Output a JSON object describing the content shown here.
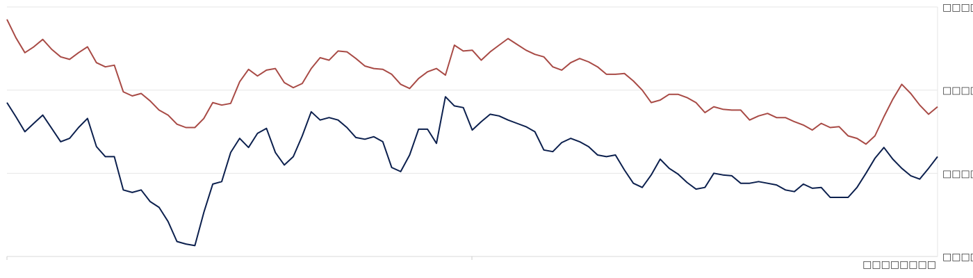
{
  "chart_data": {
    "type": "line",
    "ylabel": "",
    "xlabel": "",
    "grid": true,
    "ylim": [
      0,
      3
    ],
    "y_ticks": [
      {
        "value": 3,
        "label": "□□□□□□"
      },
      {
        "value": 2,
        "label": "□□□□□□"
      },
      {
        "value": 1,
        "label": "□□□□□□"
      },
      {
        "value": 0,
        "label": "□□□□□□"
      }
    ],
    "x_label_text": "□□□□□□□□",
    "x": [
      0,
      1,
      2,
      3,
      4,
      5,
      6,
      7,
      8,
      9,
      10,
      11,
      12,
      13,
      14,
      15,
      16,
      17,
      18,
      19,
      20,
      21,
      22,
      23,
      24,
      25,
      26,
      27,
      28,
      29,
      30,
      31,
      32,
      33,
      34,
      35,
      36,
      37,
      38,
      39,
      40,
      41,
      42,
      43,
      44,
      45,
      46,
      47,
      48,
      49,
      50,
      51,
      52,
      53,
      54,
      55,
      56,
      57,
      58,
      59,
      60,
      61,
      62,
      63,
      64,
      65,
      66,
      67,
      68,
      69,
      70,
      71,
      72,
      73,
      74,
      75,
      76,
      77,
      78,
      79,
      80,
      81,
      82,
      83,
      84,
      85,
      86,
      87,
      88,
      89,
      90,
      91,
      92,
      93,
      94,
      95,
      96,
      97,
      98,
      99,
      100,
      101,
      102,
      103,
      104
    ],
    "series": [
      {
        "color": "#a84a45",
        "values": [
          2.85,
          2.63,
          2.45,
          2.52,
          2.61,
          2.49,
          2.4,
          2.37,
          2.45,
          2.52,
          2.33,
          2.28,
          2.3,
          1.98,
          1.93,
          1.96,
          1.87,
          1.76,
          1.7,
          1.59,
          1.55,
          1.55,
          1.66,
          1.85,
          1.82,
          1.84,
          2.1,
          2.25,
          2.17,
          2.24,
          2.26,
          2.09,
          2.03,
          2.08,
          2.26,
          2.39,
          2.36,
          2.47,
          2.46,
          2.38,
          2.29,
          2.26,
          2.25,
          2.19,
          2.07,
          2.02,
          2.14,
          2.22,
          2.26,
          2.18,
          2.54,
          2.47,
          2.48,
          2.36,
          2.46,
          2.54,
          2.62,
          2.55,
          2.48,
          2.43,
          2.4,
          2.28,
          2.24,
          2.33,
          2.38,
          2.34,
          2.28,
          2.19,
          2.19,
          2.2,
          2.11,
          2.0,
          1.85,
          1.88,
          1.95,
          1.95,
          1.91,
          1.85,
          1.73,
          1.8,
          1.77,
          1.76,
          1.76,
          1.64,
          1.69,
          1.72,
          1.67,
          1.67,
          1.62,
          1.58,
          1.52,
          1.6,
          1.55,
          1.56,
          1.45,
          1.42,
          1.35,
          1.45,
          1.68,
          1.89,
          2.07,
          1.96,
          1.82,
          1.71,
          1.8
        ]
      },
      {
        "color": "#0b1f4d",
        "values": [
          1.85,
          1.68,
          1.5,
          1.6,
          1.7,
          1.54,
          1.38,
          1.42,
          1.55,
          1.66,
          1.32,
          1.2,
          1.2,
          0.8,
          0.77,
          0.8,
          0.66,
          0.59,
          0.42,
          0.18,
          0.15,
          0.13,
          0.53,
          0.87,
          0.9,
          1.25,
          1.42,
          1.31,
          1.48,
          1.54,
          1.25,
          1.1,
          1.2,
          1.45,
          1.74,
          1.64,
          1.67,
          1.64,
          1.55,
          1.43,
          1.41,
          1.44,
          1.38,
          1.07,
          1.02,
          1.22,
          1.53,
          1.53,
          1.36,
          1.92,
          1.81,
          1.79,
          1.52,
          1.62,
          1.71,
          1.69,
          1.64,
          1.6,
          1.56,
          1.5,
          1.28,
          1.26,
          1.37,
          1.42,
          1.38,
          1.32,
          1.22,
          1.2,
          1.22,
          1.04,
          0.88,
          0.83,
          0.98,
          1.17,
          1.06,
          0.99,
          0.89,
          0.81,
          0.83,
          1.0,
          0.98,
          0.97,
          0.88,
          0.88,
          0.9,
          0.88,
          0.86,
          0.8,
          0.78,
          0.87,
          0.82,
          0.83,
          0.71,
          0.71,
          0.71,
          0.83,
          1.0,
          1.18,
          1.31,
          1.17,
          1.06,
          0.97,
          0.93,
          1.06,
          1.2
        ]
      }
    ]
  }
}
